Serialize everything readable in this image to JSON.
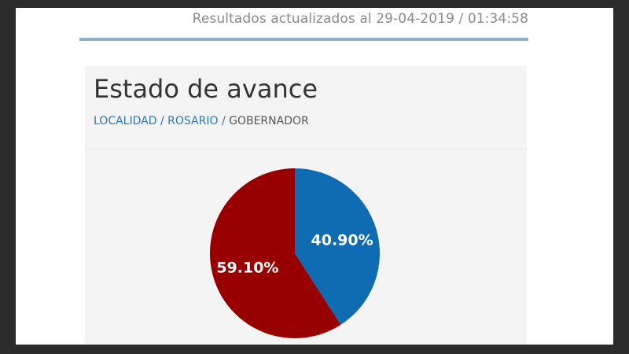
{
  "header": {
    "updated_text": "Resultados actualizados al 29-04-2019 / 01:34:58"
  },
  "panel": {
    "title": "Estado de avance",
    "breadcrumb": {
      "items": [
        "LOCALIDAD",
        "ROSARIO"
      ],
      "separator": "/",
      "current": "GOBERNADOR"
    }
  },
  "colors": {
    "accent_rule": "#8ab1cc",
    "link": "#2a77b2",
    "slice_blue": "#0f6cb2",
    "slice_red": "#980000"
  },
  "chart_data": {
    "type": "pie",
    "slices": [
      {
        "value": 40.9,
        "label": "40.90%",
        "color": "#0f6cb2"
      },
      {
        "value": 59.1,
        "label": "59.10%",
        "color": "#980000"
      }
    ],
    "title": "",
    "legend": "none"
  }
}
